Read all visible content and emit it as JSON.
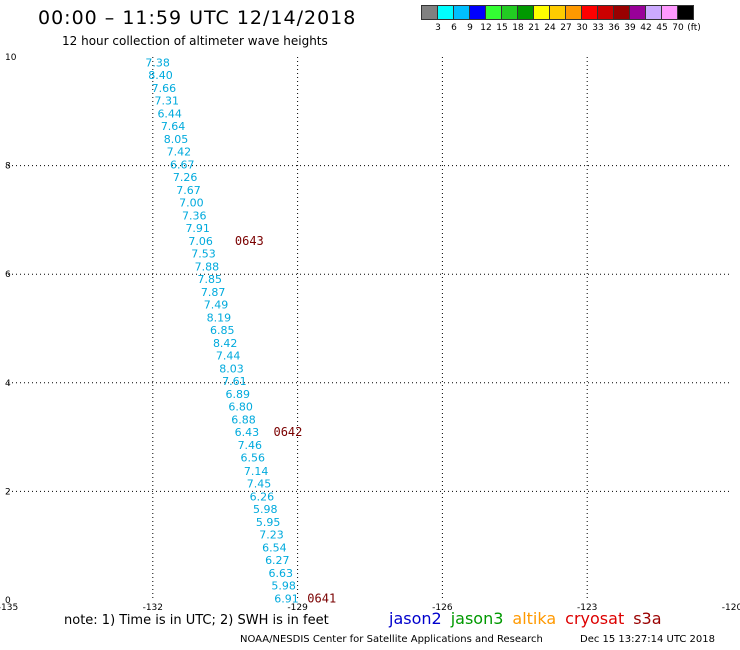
{
  "header": {
    "title": "00:00 – 11:59 UTC 12/14/2018",
    "subtitle": "12 hour collection of altimeter wave heights"
  },
  "colorbar": {
    "colors": [
      "#808080",
      "#00ffff",
      "#00bfff",
      "#0000ff",
      "#33ff33",
      "#22cc22",
      "#009900",
      "#ffff00",
      "#ffcc00",
      "#ff9900",
      "#ff0000",
      "#cc0000",
      "#990000",
      "#990099",
      "#ccaaff",
      "#ff99ff",
      "#000000"
    ],
    "labels": [
      "3",
      "6",
      "9",
      "12",
      "15",
      "18",
      "21",
      "24",
      "27",
      "30",
      "33",
      "36",
      "39",
      "42",
      "45",
      "70",
      "(ft)"
    ]
  },
  "chart_data": {
    "type": "scatter",
    "title": "00:00 – 11:59 UTC 12/14/2018",
    "subtitle": "12 hour collection of altimeter wave heights",
    "xlabel": "",
    "ylabel": "",
    "xlim": [
      -135,
      -120
    ],
    "ylim": [
      0,
      10
    ],
    "x_ticks": [
      "-135",
      "-132",
      "-129",
      "-126",
      "-123",
      "-120"
    ],
    "y_ticks": [
      "0",
      "2",
      "4",
      "6",
      "8",
      "10"
    ],
    "grid": true,
    "label_color": "#00aadd",
    "points": [
      {
        "x": -131.9,
        "y": 9.9,
        "v": "7.38"
      },
      {
        "x": -131.84,
        "y": 9.67,
        "v": "8.40"
      },
      {
        "x": -131.77,
        "y": 9.43,
        "v": "7.66"
      },
      {
        "x": -131.71,
        "y": 9.2,
        "v": "7.31"
      },
      {
        "x": -131.65,
        "y": 8.96,
        "v": "6.44"
      },
      {
        "x": -131.58,
        "y": 8.73,
        "v": "7.64"
      },
      {
        "x": -131.52,
        "y": 8.49,
        "v": "8.05"
      },
      {
        "x": -131.46,
        "y": 8.26,
        "v": "7.42"
      },
      {
        "x": -131.39,
        "y": 8.02,
        "v": "6.67"
      },
      {
        "x": -131.33,
        "y": 7.79,
        "v": "7.26"
      },
      {
        "x": -131.26,
        "y": 7.55,
        "v": "7.67"
      },
      {
        "x": -131.2,
        "y": 7.32,
        "v": "7.00"
      },
      {
        "x": -131.14,
        "y": 7.08,
        "v": "7.36"
      },
      {
        "x": -131.07,
        "y": 6.85,
        "v": "7.91"
      },
      {
        "x": -131.01,
        "y": 6.61,
        "v": "7.06"
      },
      {
        "x": -130.95,
        "y": 6.38,
        "v": "7.53"
      },
      {
        "x": -130.88,
        "y": 6.14,
        "v": "7.88"
      },
      {
        "x": -130.82,
        "y": 5.91,
        "v": "7.85"
      },
      {
        "x": -130.75,
        "y": 5.67,
        "v": "7.87"
      },
      {
        "x": -130.69,
        "y": 5.44,
        "v": "7.49"
      },
      {
        "x": -130.63,
        "y": 5.2,
        "v": "8.19"
      },
      {
        "x": -130.56,
        "y": 4.97,
        "v": "6.85"
      },
      {
        "x": -130.5,
        "y": 4.73,
        "v": "8.42"
      },
      {
        "x": -130.44,
        "y": 4.5,
        "v": "7.44"
      },
      {
        "x": -130.37,
        "y": 4.26,
        "v": "8.03"
      },
      {
        "x": -130.31,
        "y": 4.03,
        "v": "7.61"
      },
      {
        "x": -130.24,
        "y": 3.79,
        "v": "6.89"
      },
      {
        "x": -130.18,
        "y": 3.56,
        "v": "6.80"
      },
      {
        "x": -130.12,
        "y": 3.32,
        "v": "6.88"
      },
      {
        "x": -130.05,
        "y": 3.09,
        "v": "6.43"
      },
      {
        "x": -129.99,
        "y": 2.85,
        "v": "7.46"
      },
      {
        "x": -129.93,
        "y": 2.62,
        "v": "6.56"
      },
      {
        "x": -129.86,
        "y": 2.38,
        "v": "7.14"
      },
      {
        "x": -129.8,
        "y": 2.15,
        "v": "7.45"
      },
      {
        "x": -129.74,
        "y": 1.91,
        "v": "6.26"
      },
      {
        "x": -129.67,
        "y": 1.68,
        "v": "5.98"
      },
      {
        "x": -129.61,
        "y": 1.44,
        "v": "5.95"
      },
      {
        "x": -129.54,
        "y": 1.21,
        "v": "7.23"
      },
      {
        "x": -129.48,
        "y": 0.97,
        "v": "6.54"
      },
      {
        "x": -129.42,
        "y": 0.74,
        "v": "6.27"
      },
      {
        "x": -129.35,
        "y": 0.5,
        "v": "6.63"
      },
      {
        "x": -129.29,
        "y": 0.27,
        "v": "5.98"
      },
      {
        "x": -129.23,
        "y": 0.03,
        "v": "6.91"
      }
    ],
    "time_labels": [
      {
        "x": -130.0,
        "y": 6.61,
        "v": "0643"
      },
      {
        "x": -129.2,
        "y": 3.09,
        "v": "0642"
      },
      {
        "x": -128.5,
        "y": 0.03,
        "v": "0641"
      }
    ],
    "time_label_color": "#7a0000"
  },
  "footer": {
    "note": "note:  1) Time is in UTC;  2) SWH is in feet",
    "satellites": [
      {
        "name": "jason2",
        "color": "#0000cc"
      },
      {
        "name": "jason3",
        "color": "#009900"
      },
      {
        "name": "altika",
        "color": "#ff9900"
      },
      {
        "name": "cryosat",
        "color": "#dd0000"
      },
      {
        "name": "s3a",
        "color": "#990000"
      }
    ],
    "credit": "NOAA/NESDIS Center for Satellite Applications and Research",
    "timestamp": "Dec 15 13:27:14 UTC 2018"
  }
}
